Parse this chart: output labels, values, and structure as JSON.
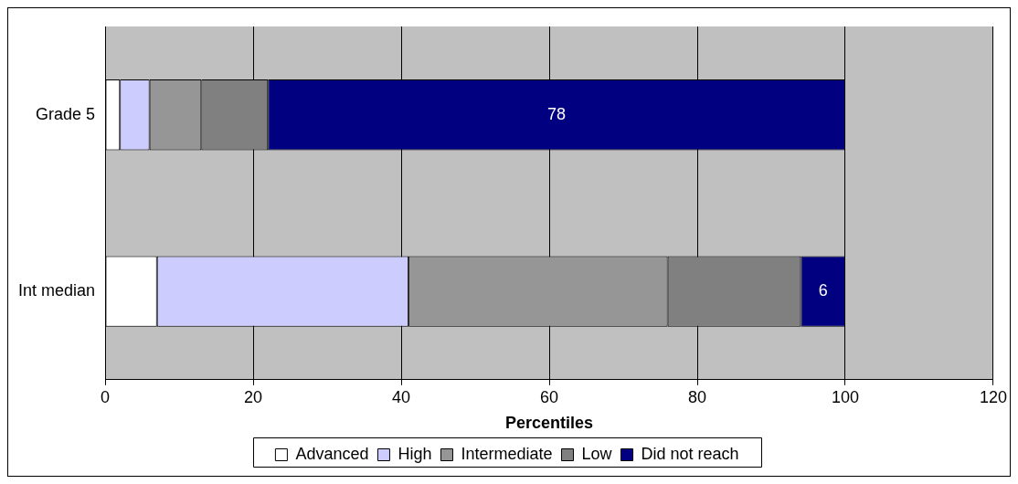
{
  "chart_data": {
    "type": "bar",
    "orientation": "horizontal",
    "stacked": true,
    "categories": [
      "Grade 5",
      "Int median"
    ],
    "series": [
      {
        "name": "Advanced",
        "color": "#ffffff",
        "values": [
          2,
          7
        ]
      },
      {
        "name": "High",
        "color": "#ccccff",
        "values": [
          4,
          34
        ]
      },
      {
        "name": "Intermediate",
        "color": "#969696",
        "values": [
          7,
          35
        ]
      },
      {
        "name": "Low",
        "color": "#808080",
        "values": [
          9,
          18
        ]
      },
      {
        "name": "Did not reach",
        "color": "#000080",
        "values": [
          78,
          6
        ],
        "value_labels": [
          "78",
          "6"
        ]
      }
    ],
    "xlabel": "Percentiles",
    "xlim": [
      0,
      120
    ],
    "xticks": [
      0,
      20,
      40,
      60,
      80,
      100,
      120
    ],
    "grid": "x",
    "legend": "bottom"
  }
}
